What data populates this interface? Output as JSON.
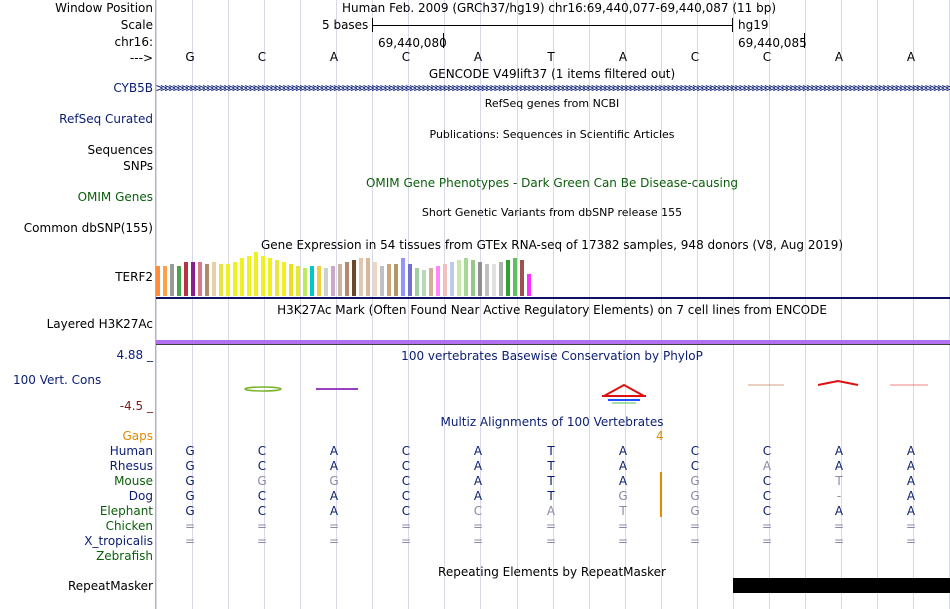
{
  "header": {
    "window_position_label": "Window Position",
    "window_position_value": "Human Feb. 2009 (GRCh37/hg19)   chr16:69,440,077-69,440,087 (11 bp)",
    "scale_label": "Scale",
    "scale_bases": "5 bases",
    "scale_assembly": "hg19",
    "chrom_label": "chr16:",
    "coord_left": "69,440,080",
    "coord_right": "69,440,085",
    "strand_label": "--->",
    "bases": [
      "G",
      "C",
      "A",
      "C",
      "A",
      "T",
      "A",
      "C",
      "C",
      "A",
      "A"
    ]
  },
  "tracks": {
    "gencode_title": "GENCODE V49lift37 (1 items filtered out)",
    "gencode_gene": "CYB5B",
    "refseq_label": "RefSeq Curated",
    "refseq_title": "RefSeq genes from NCBI",
    "publications_title": "Publications: Sequences in Scientific Articles",
    "sequences_label": "Sequences",
    "snps_label": "SNPs",
    "omim_label": "OMIM Genes",
    "omim_title": "OMIM Gene Phenotypes - Dark Green Can Be Disease-causing",
    "dbsnp_title": "Short Genetic Variants from dbSNP release 155",
    "dbsnp_label": "Common dbSNP(155)",
    "gtex_title": "Gene Expression in 54 tissues from GTEx RNA-seq of 17382 samples, 948 donors (V8, Aug 2019)",
    "gtex_gene": "TERF2",
    "h3k27ac_title": "H3K27Ac Mark (Often Found Near Active Regulatory Elements) on 7 cell lines from ENCODE",
    "h3k27ac_label": "Layered H3K27Ac",
    "phylop_max": "4.88 _",
    "phylop_title": "100 vertebrates Basewise Conservation by PhyloP",
    "phylop_label": "100 Vert. Cons",
    "phylop_min": "-4.5 _",
    "multiz_title": "Multiz Alignments of 100 Vertebrates",
    "gaps_label": "Gaps",
    "gaps_value": "4",
    "repeatmasker_title": "Repeating Elements by RepeatMasker",
    "repeatmasker_label": "RepeatMasker"
  },
  "alignment": {
    "species": [
      {
        "name": "Human",
        "bases": [
          "G",
          "C",
          "A",
          "C",
          "A",
          "T",
          "A",
          "C",
          "C",
          "A",
          "A"
        ]
      },
      {
        "name": "Rhesus",
        "bases": [
          "G",
          "C",
          "A",
          "C",
          "A",
          "T",
          "A",
          "C",
          "A",
          "A",
          "A"
        ]
      },
      {
        "name": "Mouse",
        "bases": [
          "G",
          "G",
          "G",
          "C",
          "A",
          "T",
          "A",
          "G",
          "C",
          "T",
          "A"
        ]
      },
      {
        "name": "Dog",
        "bases": [
          "G",
          "C",
          "A",
          "C",
          "A",
          "T",
          "G",
          "G",
          "C",
          "-",
          "A"
        ]
      },
      {
        "name": "Elephant",
        "bases": [
          "G",
          "C",
          "A",
          "C",
          "C",
          "A",
          "T",
          "G",
          "C",
          "A",
          "A"
        ]
      },
      {
        "name": "Chicken",
        "bases": [
          "=",
          "=",
          "=",
          "=",
          "=",
          "=",
          "=",
          "=",
          "=",
          "=",
          "="
        ]
      },
      {
        "name": "X_tropicalis",
        "bases": [
          "=",
          "=",
          "=",
          "=",
          "=",
          "=",
          "=",
          "=",
          "=",
          "=",
          "="
        ]
      },
      {
        "name": "Zebrafish",
        "bases": [
          "",
          "",
          "",
          "",
          "",
          "",
          "",
          "",
          "",
          "",
          ""
        ]
      }
    ]
  },
  "gtex_values": [
    30,
    30,
    32,
    30,
    34,
    34,
    34,
    32,
    34,
    32,
    32,
    34,
    38,
    40,
    44,
    40,
    38,
    36,
    34,
    32,
    30,
    28,
    30,
    30,
    28,
    30,
    32,
    34,
    36,
    38,
    38,
    34,
    30,
    32,
    32,
    38,
    32,
    28,
    26,
    28,
    30,
    32,
    34,
    36,
    38,
    36,
    34,
    32,
    32,
    34,
    36,
    38,
    36,
    22
  ],
  "gtex_colors": [
    "#ff8c3a",
    "#ff9f4a",
    "#9a9a9a",
    "#49a34a",
    "#b5343f",
    "#8a1e8a",
    "#d97a8a",
    "#b08a6a",
    "#e7d0a8",
    "#e8e24a",
    "#f0f020",
    "#f0f020",
    "#f0f020",
    "#f0f020",
    "#f0f020",
    "#f0f020",
    "#f0f020",
    "#e8e840",
    "#f0f020",
    "#e6e020",
    "#e8e830",
    "#bde95a",
    "#00c6c6",
    "#f0d040",
    "#cfcfcf",
    "#caa8c8",
    "#c8b4a0",
    "#b48a6a",
    "#6a4a2a",
    "#e0c8b0",
    "#d8b898",
    "#ecd6c0",
    "#c0c0c0",
    "#c8a878",
    "#b09868",
    "#9494ff",
    "#7070d0",
    "#a0d0a0",
    "#b8d8b8",
    "#d0b090",
    "#ff88ff",
    "#f0c0c0",
    "#c0c8f0",
    "#c8e8a8",
    "#a8d898",
    "#98c888",
    "#909090",
    "#c0c0c0",
    "#e0e0e0",
    "#b0b0b0",
    "#30a030",
    "#60c060",
    "#a05050",
    "#ff30ff"
  ],
  "colors": {
    "navy": "#0a1d73",
    "dark_green": "#0b5e0b",
    "gaps_orange": "#e08a00",
    "h3k27ac_purple": "#b070f0"
  }
}
